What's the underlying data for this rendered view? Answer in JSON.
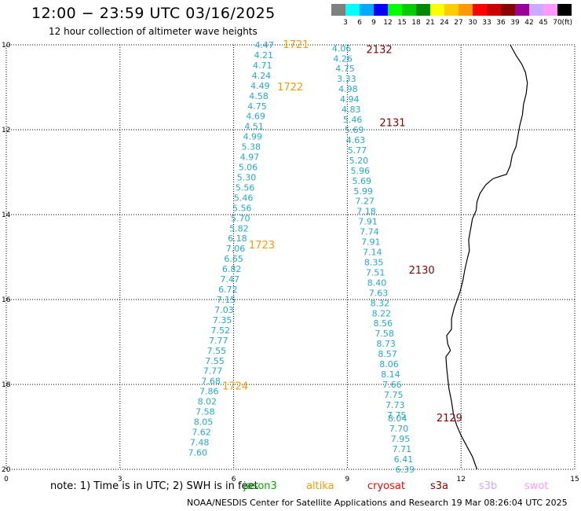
{
  "header": {
    "title": "12:00 − 23:59 UTC 03/16/2025",
    "subtitle": "12 hour collection of altimeter wave heights"
  },
  "legend": {
    "unit": "(ft)",
    "bins": [
      {
        "label": "3",
        "color": "#808080"
      },
      {
        "label": "6",
        "color": "#00ffff"
      },
      {
        "label": "9",
        "color": "#00aaff"
      },
      {
        "label": "12",
        "color": "#0000ff"
      },
      {
        "label": "15",
        "color": "#00ff00"
      },
      {
        "label": "18",
        "color": "#00cc00"
      },
      {
        "label": "21",
        "color": "#008800"
      },
      {
        "label": "24",
        "color": "#ffff00"
      },
      {
        "label": "27",
        "color": "#ffcc00"
      },
      {
        "label": "30",
        "color": "#ff9900"
      },
      {
        "label": "33",
        "color": "#ff0000"
      },
      {
        "label": "36",
        "color": "#cc0000"
      },
      {
        "label": "39",
        "color": "#880000"
      },
      {
        "label": "42",
        "color": "#990099"
      },
      {
        "label": "45",
        "color": "#ccaaff"
      },
      {
        "label": "70",
        "color": "#ff99ff"
      },
      {
        "label": "",
        "color": "#000000"
      }
    ]
  },
  "axes": {
    "x_ticks": [
      "0",
      "3",
      "6",
      "9",
      "12",
      "15"
    ],
    "y_ticks": [
      "10",
      "12",
      "14",
      "16",
      "18",
      "20"
    ]
  },
  "colors": {
    "value_text": "#22aacc",
    "label_1721": "#ff9900",
    "label_2132": "#880000"
  },
  "tracks": [
    {
      "label": "1721-1724",
      "points": [
        {
          "v": "4.47",
          "x": 6.81,
          "y": 10.0
        },
        {
          "v": "4.21",
          "x": 6.79,
          "y": 10.24
        },
        {
          "v": "4.71",
          "x": 6.76,
          "y": 10.48
        },
        {
          "v": "4.24",
          "x": 6.73,
          "y": 10.72
        },
        {
          "v": "4.49",
          "x": 6.7,
          "y": 10.96
        },
        {
          "v": "4.58",
          "x": 6.66,
          "y": 11.2
        },
        {
          "v": "4.75",
          "x": 6.62,
          "y": 11.44
        },
        {
          "v": "4.69",
          "x": 6.58,
          "y": 11.68
        },
        {
          "v": "4.51",
          "x": 6.54,
          "y": 11.92
        },
        {
          "v": "4.99",
          "x": 6.5,
          "y": 12.16
        },
        {
          "v": "5.38",
          "x": 6.46,
          "y": 12.4
        },
        {
          "v": "4.97",
          "x": 6.42,
          "y": 12.64
        },
        {
          "v": "5.06",
          "x": 6.38,
          "y": 12.88
        },
        {
          "v": "5.30",
          "x": 6.34,
          "y": 13.12
        },
        {
          "v": "5.56",
          "x": 6.3,
          "y": 13.36
        },
        {
          "v": "5.46",
          "x": 6.26,
          "y": 13.6
        },
        {
          "v": "5.56",
          "x": 6.22,
          "y": 13.84
        },
        {
          "v": "5.70",
          "x": 6.18,
          "y": 14.08
        },
        {
          "v": "5.82",
          "x": 6.14,
          "y": 14.32
        },
        {
          "v": "6.18",
          "x": 6.1,
          "y": 14.56
        },
        {
          "v": "7.06",
          "x": 6.05,
          "y": 14.8
        },
        {
          "v": "6.65",
          "x": 6.0,
          "y": 15.04
        },
        {
          "v": "6.82",
          "x": 5.95,
          "y": 15.28
        },
        {
          "v": "7.47",
          "x": 5.9,
          "y": 15.52
        },
        {
          "v": "6.72",
          "x": 5.85,
          "y": 15.76
        },
        {
          "v": "7.15",
          "x": 5.8,
          "y": 16.0
        },
        {
          "v": "7.03",
          "x": 5.75,
          "y": 16.24
        },
        {
          "v": "7.35",
          "x": 5.7,
          "y": 16.48
        },
        {
          "v": "7.52",
          "x": 5.65,
          "y": 16.72
        },
        {
          "v": "7.77",
          "x": 5.6,
          "y": 16.96
        },
        {
          "v": "7.55",
          "x": 5.55,
          "y": 17.2
        },
        {
          "v": "7.55",
          "x": 5.5,
          "y": 17.44
        },
        {
          "v": "7.77",
          "x": 5.45,
          "y": 17.68
        },
        {
          "v": "7.68",
          "x": 5.4,
          "y": 17.92
        },
        {
          "v": "7.86",
          "x": 5.35,
          "y": 18.16
        },
        {
          "v": "8.02",
          "x": 5.3,
          "y": 18.4
        },
        {
          "v": "7.58",
          "x": 5.25,
          "y": 18.64
        },
        {
          "v": "8.05",
          "x": 5.2,
          "y": 18.88
        },
        {
          "v": "7.62",
          "x": 5.15,
          "y": 19.12
        },
        {
          "v": "7.48",
          "x": 5.1,
          "y": 19.36
        },
        {
          "v": "7.60",
          "x": 5.05,
          "y": 19.6
        }
      ],
      "time_labels": [
        {
          "t": "1721",
          "x": 7.3,
          "y": 9.98
        },
        {
          "t": "1722",
          "x": 7.15,
          "y": 10.98
        },
        {
          "t": "1723",
          "x": 6.4,
          "y": 14.7
        },
        {
          "t": "1724",
          "x": 5.7,
          "y": 18.03
        }
      ]
    },
    {
      "label": "2132-2129",
      "points": [
        {
          "v": "4.06",
          "x": 8.85,
          "y": 10.08
        },
        {
          "v": "4.26",
          "x": 8.88,
          "y": 10.32
        },
        {
          "v": "4.75",
          "x": 8.94,
          "y": 10.56
        },
        {
          "v": "3.33",
          "x": 8.98,
          "y": 10.8
        },
        {
          "v": "4.98",
          "x": 9.02,
          "y": 11.04
        },
        {
          "v": "4.94",
          "x": 9.06,
          "y": 11.28
        },
        {
          "v": "4.83",
          "x": 9.1,
          "y": 11.52
        },
        {
          "v": "5.46",
          "x": 9.14,
          "y": 11.76
        },
        {
          "v": "5.69",
          "x": 9.18,
          "y": 12.0
        },
        {
          "v": "4.63",
          "x": 9.22,
          "y": 12.24
        },
        {
          "v": "5.77",
          "x": 9.26,
          "y": 12.48
        },
        {
          "v": "5.20",
          "x": 9.3,
          "y": 12.72
        },
        {
          "v": "5.96",
          "x": 9.34,
          "y": 12.96
        },
        {
          "v": "5.69",
          "x": 9.38,
          "y": 13.2
        },
        {
          "v": "5.99",
          "x": 9.42,
          "y": 13.44
        },
        {
          "v": "7.27",
          "x": 9.46,
          "y": 13.68
        },
        {
          "v": "7.18",
          "x": 9.5,
          "y": 13.92
        },
        {
          "v": "7.91",
          "x": 9.54,
          "y": 14.16
        },
        {
          "v": "7.74",
          "x": 9.58,
          "y": 14.4
        },
        {
          "v": "7.91",
          "x": 9.62,
          "y": 14.64
        },
        {
          "v": "7.14",
          "x": 9.66,
          "y": 14.88
        },
        {
          "v": "8.35",
          "x": 9.7,
          "y": 15.12
        },
        {
          "v": "7.51",
          "x": 9.74,
          "y": 15.36
        },
        {
          "v": "8.40",
          "x": 9.78,
          "y": 15.6
        },
        {
          "v": "7.63",
          "x": 9.82,
          "y": 15.84
        },
        {
          "v": "8.32",
          "x": 9.86,
          "y": 16.08
        },
        {
          "v": "8.22",
          "x": 9.9,
          "y": 16.32
        },
        {
          "v": "8.56",
          "x": 9.94,
          "y": 16.56
        },
        {
          "v": "7.58",
          "x": 9.98,
          "y": 16.8
        },
        {
          "v": "8.73",
          "x": 10.02,
          "y": 17.04
        },
        {
          "v": "8.57",
          "x": 10.06,
          "y": 17.28
        },
        {
          "v": "8.06",
          "x": 10.1,
          "y": 17.52
        },
        {
          "v": "8.14",
          "x": 10.14,
          "y": 17.76
        },
        {
          "v": "7.66",
          "x": 10.18,
          "y": 18.0
        },
        {
          "v": "7.75",
          "x": 10.22,
          "y": 18.24
        },
        {
          "v": "7.73",
          "x": 10.26,
          "y": 18.48
        },
        {
          "v": "7.75",
          "x": 10.3,
          "y": 18.72
        },
        {
          "v": "8.04",
          "x": 10.32,
          "y": 18.8
        },
        {
          "v": "7.70",
          "x": 10.36,
          "y": 19.04
        },
        {
          "v": "7.95",
          "x": 10.4,
          "y": 19.28
        },
        {
          "v": "7.71",
          "x": 10.44,
          "y": 19.52
        },
        {
          "v": "6.41",
          "x": 10.48,
          "y": 19.76
        },
        {
          "v": "6.39",
          "x": 10.52,
          "y": 20.0
        }
      ],
      "time_labels": [
        {
          "t": "2132",
          "x": 9.5,
          "y": 10.1
        },
        {
          "t": "2131",
          "x": 9.85,
          "y": 11.82
        },
        {
          "t": "2130",
          "x": 10.62,
          "y": 15.3
        },
        {
          "t": "2129",
          "x": 11.35,
          "y": 18.78
        }
      ]
    }
  ],
  "coastline": [
    [
      13.3,
      10.0
    ],
    [
      13.45,
      10.25
    ],
    [
      13.6,
      10.45
    ],
    [
      13.7,
      10.65
    ],
    [
      13.75,
      10.9
    ],
    [
      13.72,
      11.15
    ],
    [
      13.65,
      11.4
    ],
    [
      13.62,
      11.65
    ],
    [
      13.55,
      11.9
    ],
    [
      13.5,
      12.15
    ],
    [
      13.45,
      12.4
    ],
    [
      13.35,
      12.6
    ],
    [
      13.3,
      12.85
    ],
    [
      13.2,
      13.05
    ],
    [
      12.85,
      13.15
    ],
    [
      12.65,
      13.3
    ],
    [
      12.5,
      13.5
    ],
    [
      12.42,
      13.7
    ],
    [
      12.4,
      13.9
    ],
    [
      12.3,
      14.1
    ],
    [
      12.25,
      14.35
    ],
    [
      12.2,
      14.6
    ],
    [
      12.22,
      14.85
    ],
    [
      12.15,
      15.1
    ],
    [
      12.1,
      15.3
    ],
    [
      12.05,
      15.55
    ],
    [
      11.98,
      15.8
    ],
    [
      11.9,
      16.0
    ],
    [
      11.82,
      16.2
    ],
    [
      11.75,
      16.45
    ],
    [
      11.75,
      16.7
    ],
    [
      11.62,
      16.85
    ],
    [
      11.65,
      17.05
    ],
    [
      11.72,
      17.2
    ],
    [
      11.6,
      17.35
    ],
    [
      11.62,
      17.6
    ],
    [
      11.65,
      17.85
    ],
    [
      11.68,
      18.1
    ],
    [
      11.75,
      18.4
    ],
    [
      11.8,
      18.7
    ],
    [
      11.88,
      18.95
    ],
    [
      12.0,
      19.2
    ],
    [
      12.15,
      19.45
    ],
    [
      12.3,
      19.7
    ],
    [
      12.42,
      20.0
    ]
  ],
  "footer": {
    "note": "note: 1) Time is in UTC; 2) SWH is in feet",
    "satellites": [
      {
        "name": "jason3",
        "color": "#00aa00"
      },
      {
        "name": "altika",
        "color": "#ff9900"
      },
      {
        "name": "cryosat",
        "color": "#ff0000"
      },
      {
        "name": "s3a",
        "color": "#880000"
      },
      {
        "name": "s3b",
        "color": "#ccaaff"
      },
      {
        "name": "swot",
        "color": "#ff99ff"
      }
    ],
    "credit": "NOAA/NESDIS Center for Satellite Applications and Research   19 Mar 08:26:04 UTC 2025"
  }
}
